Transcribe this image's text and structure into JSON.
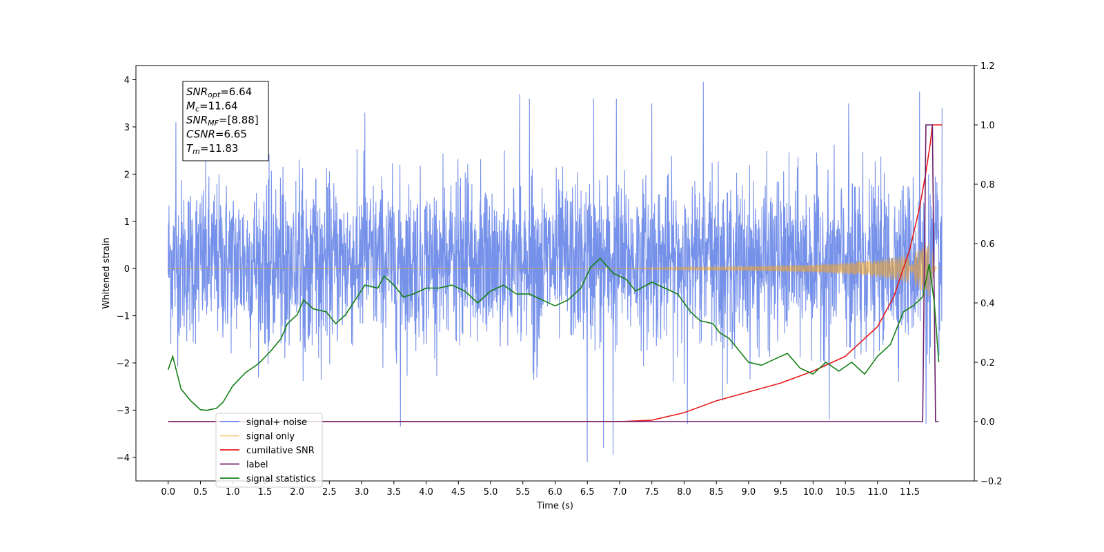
{
  "chart_data": {
    "type": "line",
    "xlabel": "Time (s)",
    "ylabel_left": "Whitened strain",
    "ylabel_right": "",
    "xlim": [
      -0.5,
      12.5
    ],
    "ylim_left": [
      -4.5,
      4.3
    ],
    "ylim_right": [
      -0.2,
      1.2
    ],
    "x_ticks": [
      "0.0",
      "0.5",
      "1.0",
      "1.5",
      "2.0",
      "2.5",
      "3.0",
      "3.5",
      "4.0",
      "4.5",
      "5.0",
      "5.5",
      "6.0",
      "6.5",
      "7.0",
      "7.5",
      "8.0",
      "8.5",
      "9.0",
      "9.5",
      "10.0",
      "10.5",
      "11.0",
      "11.5"
    ],
    "y_ticks_left": [
      "4",
      "3",
      "2",
      "1",
      "0",
      "−1",
      "−2",
      "−3",
      "−4"
    ],
    "y_ticks_right": [
      "1.2",
      "1.0",
      "0.8",
      "0.6",
      "0.4",
      "0.2",
      "0.0",
      "−0.2"
    ],
    "grid": false,
    "legend_placement": "lower-left",
    "annotation": {
      "lines": [
        {
          "main": "SNR",
          "sub": "opt",
          "rest": "=6.64"
        },
        {
          "main": "M",
          "sub": "c",
          "rest": "=11.64"
        },
        {
          "main": "SNR",
          "sub": "MF",
          "rest": "=[8.88]"
        },
        {
          "main": "CSNR",
          "sub": "",
          "rest": "=6.65"
        },
        {
          "main": "T",
          "sub": "m",
          "rest": "=11.83"
        }
      ]
    },
    "series": [
      {
        "name": "signal+ noise",
        "axis": "left",
        "color": "#6f8be8",
        "description_noise_sigma": 1.0,
        "x_range": [
          0.0,
          12.0
        ],
        "envelope_upper": [
          [
            0.0,
            2.4
          ],
          [
            1.0,
            2.5
          ],
          [
            2.0,
            2.4
          ],
          [
            3.0,
            2.6
          ],
          [
            4.0,
            2.4
          ],
          [
            5.0,
            2.6
          ],
          [
            6.0,
            2.5
          ],
          [
            7.0,
            2.6
          ],
          [
            8.0,
            2.5
          ],
          [
            9.0,
            2.6
          ],
          [
            10.0,
            2.6
          ],
          [
            11.0,
            2.7
          ],
          [
            12.0,
            2.8
          ]
        ],
        "envelope_lower": [
          [
            0.0,
            -2.2
          ],
          [
            1.0,
            -2.5
          ],
          [
            2.0,
            -2.4
          ],
          [
            3.0,
            -2.5
          ],
          [
            4.0,
            -2.4
          ],
          [
            5.0,
            -2.4
          ],
          [
            6.0,
            -2.5
          ],
          [
            7.0,
            -2.5
          ],
          [
            8.0,
            -2.5
          ],
          [
            9.0,
            -2.6
          ],
          [
            10.0,
            -2.5
          ],
          [
            11.0,
            -2.6
          ],
          [
            12.0,
            -2.6
          ]
        ],
        "peaks": [
          [
            0.12,
            3.1
          ],
          [
            3.05,
            3.3
          ],
          [
            3.6,
            -3.35
          ],
          [
            5.45,
            3.7
          ],
          [
            5.6,
            3.6
          ],
          [
            6.5,
            -4.1
          ],
          [
            6.6,
            3.6
          ],
          [
            6.75,
            -3.8
          ],
          [
            6.9,
            -3.95
          ],
          [
            6.95,
            3.6
          ],
          [
            7.5,
            3.5
          ],
          [
            8.05,
            -3.3
          ],
          [
            8.3,
            3.95
          ],
          [
            8.6,
            -2.8
          ],
          [
            10.55,
            3.5
          ],
          [
            10.25,
            -3.2
          ],
          [
            11.65,
            3.75
          ],
          [
            11.75,
            -3.3
          ],
          [
            12.0,
            3.4
          ]
        ]
      },
      {
        "name": "signal only",
        "axis": "left",
        "color": "#f5a623",
        "envelope": [
          [
            0.0,
            0.0
          ],
          [
            7.0,
            0.0
          ],
          [
            8.0,
            0.03
          ],
          [
            9.0,
            0.05
          ],
          [
            10.0,
            0.08
          ],
          [
            10.5,
            0.12
          ],
          [
            11.0,
            0.18
          ],
          [
            11.4,
            0.28
          ],
          [
            11.6,
            0.38
          ],
          [
            11.75,
            0.55
          ],
          [
            11.82,
            0.6
          ],
          [
            11.9,
            0.0
          ],
          [
            12.0,
            0.0
          ]
        ]
      },
      {
        "name": "cumilative SNR",
        "axis": "right",
        "color": "#e8191b",
        "points": [
          [
            0.0,
            0.0
          ],
          [
            7.0,
            0.0
          ],
          [
            7.5,
            0.005
          ],
          [
            8.0,
            0.03
          ],
          [
            8.5,
            0.07
          ],
          [
            9.0,
            0.1
          ],
          [
            9.5,
            0.13
          ],
          [
            10.0,
            0.17
          ],
          [
            10.5,
            0.22
          ],
          [
            11.0,
            0.32
          ],
          [
            11.25,
            0.42
          ],
          [
            11.5,
            0.58
          ],
          [
            11.65,
            0.72
          ],
          [
            11.75,
            0.84
          ],
          [
            11.82,
            0.94
          ],
          [
            11.85,
            1.0
          ],
          [
            12.0,
            1.0
          ]
        ]
      },
      {
        "name": "label",
        "axis": "right",
        "color": "#6b1e6b",
        "points": [
          [
            0.0,
            0.0
          ],
          [
            11.7,
            0.0
          ],
          [
            11.75,
            1.0
          ],
          [
            11.85,
            1.0
          ],
          [
            11.9,
            0.0
          ],
          [
            11.95,
            0.0
          ]
        ]
      },
      {
        "name": "signal statistics",
        "axis": "right",
        "color": "#137f13",
        "points": [
          [
            0.0,
            0.175
          ],
          [
            0.07,
            0.22
          ],
          [
            0.2,
            0.11
          ],
          [
            0.35,
            0.07
          ],
          [
            0.5,
            0.04
          ],
          [
            0.6,
            0.038
          ],
          [
            0.75,
            0.045
          ],
          [
            0.85,
            0.065
          ],
          [
            1.0,
            0.12
          ],
          [
            1.2,
            0.165
          ],
          [
            1.4,
            0.195
          ],
          [
            1.6,
            0.24
          ],
          [
            1.75,
            0.28
          ],
          [
            1.85,
            0.33
          ],
          [
            2.0,
            0.36
          ],
          [
            2.1,
            0.41
          ],
          [
            2.25,
            0.38
          ],
          [
            2.45,
            0.37
          ],
          [
            2.6,
            0.33
          ],
          [
            2.75,
            0.36
          ],
          [
            2.9,
            0.41
          ],
          [
            3.05,
            0.46
          ],
          [
            3.25,
            0.45
          ],
          [
            3.35,
            0.49
          ],
          [
            3.5,
            0.46
          ],
          [
            3.65,
            0.42
          ],
          [
            3.8,
            0.43
          ],
          [
            4.0,
            0.45
          ],
          [
            4.2,
            0.45
          ],
          [
            4.4,
            0.46
          ],
          [
            4.6,
            0.44
          ],
          [
            4.8,
            0.4
          ],
          [
            5.0,
            0.44
          ],
          [
            5.2,
            0.46
          ],
          [
            5.4,
            0.43
          ],
          [
            5.6,
            0.43
          ],
          [
            5.8,
            0.41
          ],
          [
            6.0,
            0.39
          ],
          [
            6.2,
            0.41
          ],
          [
            6.4,
            0.45
          ],
          [
            6.55,
            0.52
          ],
          [
            6.7,
            0.55
          ],
          [
            6.9,
            0.5
          ],
          [
            7.1,
            0.48
          ],
          [
            7.25,
            0.44
          ],
          [
            7.5,
            0.47
          ],
          [
            7.7,
            0.45
          ],
          [
            7.9,
            0.43
          ],
          [
            8.1,
            0.37
          ],
          [
            8.25,
            0.34
          ],
          [
            8.45,
            0.33
          ],
          [
            8.55,
            0.3
          ],
          [
            8.7,
            0.28
          ],
          [
            8.85,
            0.24
          ],
          [
            9.0,
            0.2
          ],
          [
            9.2,
            0.19
          ],
          [
            9.4,
            0.21
          ],
          [
            9.6,
            0.23
          ],
          [
            9.8,
            0.18
          ],
          [
            10.0,
            0.16
          ],
          [
            10.2,
            0.2
          ],
          [
            10.4,
            0.17
          ],
          [
            10.6,
            0.2
          ],
          [
            10.8,
            0.16
          ],
          [
            11.0,
            0.22
          ],
          [
            11.2,
            0.26
          ],
          [
            11.4,
            0.37
          ],
          [
            11.55,
            0.39
          ],
          [
            11.7,
            0.42
          ],
          [
            11.8,
            0.53
          ],
          [
            11.88,
            0.4
          ],
          [
            11.95,
            0.2
          ]
        ]
      }
    ]
  }
}
